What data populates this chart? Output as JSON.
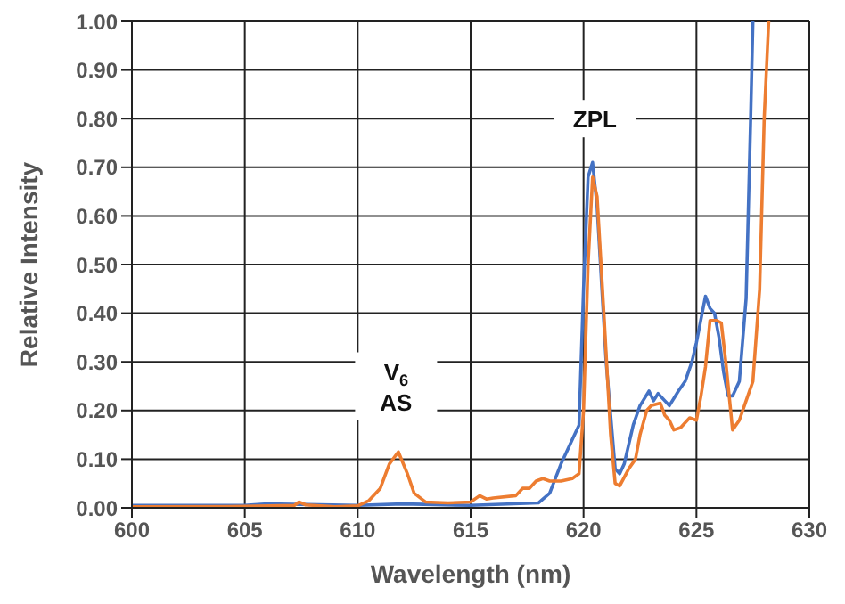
{
  "chart_data": {
    "type": "line",
    "xlabel": "Wavelength (nm)",
    "ylabel": "Relative Intensity",
    "xlim": [
      600,
      630
    ],
    "xticks": [
      600,
      605,
      610,
      615,
      620,
      625,
      630
    ],
    "ylim": [
      0,
      1
    ],
    "yticks": [
      {
        "value": 0,
        "label": "0.00"
      },
      {
        "value": 0.1,
        "label": "0.10"
      },
      {
        "value": 0.2,
        "label": "0.20"
      },
      {
        "value": 0.3,
        "label": "0.30"
      },
      {
        "value": 0.4,
        "label": "0.40"
      },
      {
        "value": 0.5,
        "label": "0.50"
      },
      {
        "value": 0.6,
        "label": "0.60"
      },
      {
        "value": 0.7,
        "label": "0.70"
      },
      {
        "value": 0.8,
        "label": "0.80"
      },
      {
        "value": 0.9,
        "label": "0.90"
      },
      {
        "value": 1,
        "label": "1.00"
      }
    ],
    "grid": true,
    "marker": "none",
    "line_style": "solid",
    "series": [
      {
        "color": "#4472c4",
        "x": [
          600,
          605,
          606,
          610,
          612,
          615,
          618,
          618.5,
          619,
          619.5,
          619.8,
          620.0,
          620.2,
          620.4,
          620.6,
          621,
          621.4,
          621.6,
          621.8,
          622.2,
          622.5,
          622.9,
          623.1,
          623.3,
          623.6,
          623.8,
          624.2,
          624.5,
          624.8,
          625.0,
          625.4,
          625.6,
          625.8,
          626.0,
          626.2,
          626.4,
          626.6,
          626.9,
          627.2,
          627.4,
          627.5
        ],
        "values": [
          0.005,
          0.005,
          0.008,
          0.005,
          0.008,
          0.005,
          0.01,
          0.03,
          0.09,
          0.14,
          0.17,
          0.45,
          0.68,
          0.71,
          0.62,
          0.3,
          0.08,
          0.07,
          0.09,
          0.17,
          0.21,
          0.24,
          0.22,
          0.235,
          0.22,
          0.21,
          0.24,
          0.26,
          0.3,
          0.34,
          0.435,
          0.41,
          0.4,
          0.35,
          0.28,
          0.23,
          0.23,
          0.26,
          0.43,
          0.8,
          1.0
        ]
      },
      {
        "color": "#ed7d31",
        "x": [
          600,
          605,
          607.2,
          607.4,
          607.7,
          609,
          610,
          610.5,
          611,
          611.4,
          611.8,
          612.2,
          612.5,
          613,
          614,
          615,
          615.4,
          615.7,
          616,
          617,
          617.3,
          617.6,
          617.9,
          618.2,
          618.5,
          619,
          619.5,
          619.8,
          620.0,
          620.2,
          620.4,
          620.6,
          620.9,
          621.2,
          621.4,
          621.6,
          622,
          622.3,
          622.5,
          622.8,
          623.0,
          623.4,
          623.6,
          623.8,
          624.0,
          624.3,
          624.7,
          625.0,
          625.2,
          625.4,
          625.6,
          625.9,
          626.1,
          626.3,
          626.6,
          626.9,
          627.2,
          627.5,
          627.8,
          628.0,
          628.2
        ],
        "values": [
          0.002,
          0.003,
          0.005,
          0.012,
          0.006,
          0.002,
          0.004,
          0.015,
          0.04,
          0.09,
          0.115,
          0.07,
          0.03,
          0.012,
          0.01,
          0.012,
          0.025,
          0.018,
          0.02,
          0.025,
          0.04,
          0.04,
          0.055,
          0.06,
          0.055,
          0.055,
          0.06,
          0.07,
          0.2,
          0.5,
          0.68,
          0.64,
          0.4,
          0.15,
          0.05,
          0.045,
          0.08,
          0.1,
          0.15,
          0.2,
          0.21,
          0.215,
          0.19,
          0.18,
          0.16,
          0.165,
          0.185,
          0.18,
          0.23,
          0.29,
          0.385,
          0.385,
          0.38,
          0.3,
          0.16,
          0.18,
          0.22,
          0.26,
          0.45,
          0.8,
          1.0
        ]
      }
    ],
    "annotations": [
      "ZPL",
      "V$_{6}$ AS"
    ]
  }
}
